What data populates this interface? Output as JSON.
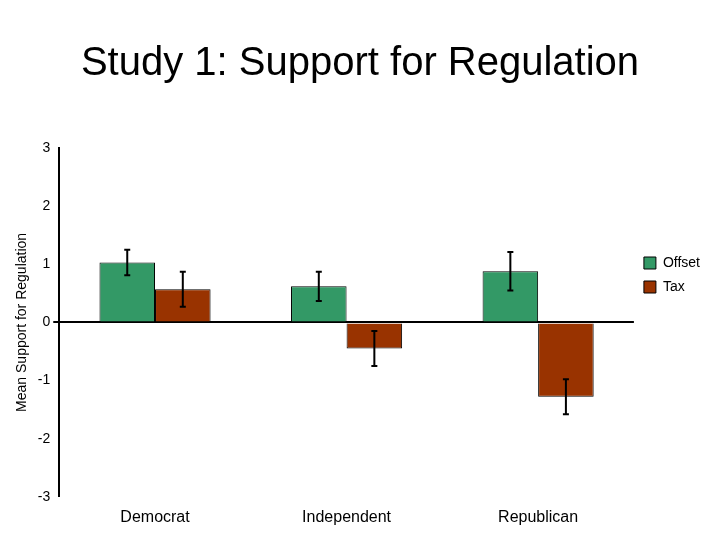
{
  "chart_data": {
    "type": "bar",
    "title": "Study 1: Support for Regulation",
    "y_label": "Mean Support for Regulation",
    "categories": [
      "Democrat",
      "Independent",
      "Republican"
    ],
    "series": [
      {
        "name": "Offset",
        "color": "#339966",
        "values": [
          1.03,
          0.62,
          0.88
        ],
        "errors": [
          0.22,
          0.25,
          0.33
        ]
      },
      {
        "name": "Tax",
        "color": "#993300",
        "values": [
          0.57,
          -0.45,
          -1.28
        ],
        "errors": [
          0.3,
          0.3,
          0.3
        ]
      }
    ],
    "ylim": [
      -3,
      3
    ],
    "yticks": [
      -3,
      -2,
      -1,
      0,
      1,
      2,
      3
    ],
    "grid": false,
    "legend": "right"
  }
}
